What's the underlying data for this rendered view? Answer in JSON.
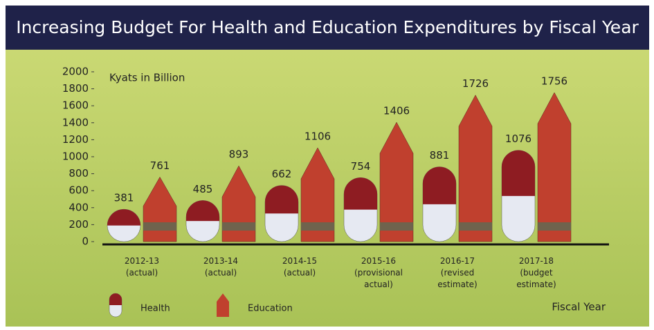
{
  "chart_data": {
    "type": "pill-pencil",
    "title": "Increasing Budget For Health and Education Expenditures by Fiscal Year",
    "y_label": "Kyats in Billion",
    "x_label": "Fiscal Year",
    "categories": [
      "2012-13\n(actual)",
      "2013-14\n(actual)",
      "2014-15\n(actual)",
      "2015-16\n(provisional\nactual)",
      "2016-17\n(revised\nestimate)",
      "2017-18\n(budget\nestimate)"
    ],
    "series": [
      {
        "name": "Health",
        "color": "#8e1c22",
        "values": [
          381,
          485,
          662,
          754,
          881,
          1076
        ]
      },
      {
        "name": "Education",
        "color": "#c0402e",
        "values": [
          761,
          893,
          1106,
          1406,
          1726,
          1756
        ]
      }
    ],
    "ylim": [
      0,
      2000
    ],
    "yticks": [
      0,
      200,
      400,
      600,
      800,
      1000,
      1200,
      1400,
      1600,
      1800,
      2000
    ]
  }
}
